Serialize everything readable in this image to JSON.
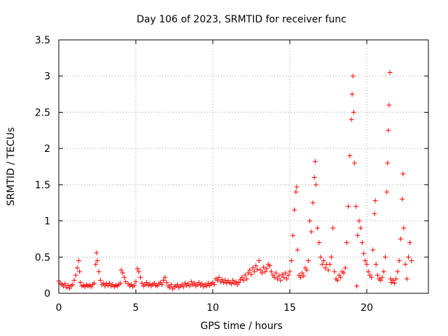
{
  "chart_data": {
    "type": "scatter",
    "title": "Day 106 of 2023, SRMTID for receiver func",
    "xlabel": "GPS time / hours",
    "ylabel": "SRMTID / TECUs",
    "xlim": [
      0,
      24
    ],
    "ylim": [
      0,
      3.5
    ],
    "xticks": [
      0,
      5,
      10,
      15,
      20
    ],
    "xtick_labels": [
      "0",
      "5",
      "10",
      "15",
      "20"
    ],
    "yticks": [
      0,
      0.5,
      1,
      1.5,
      2,
      2.5,
      3,
      3.5
    ],
    "ytick_labels": [
      "0",
      "0.5",
      "1",
      "1.5",
      "2",
      "2.5",
      "3",
      "3.5"
    ],
    "grid": true,
    "marker": "+",
    "color": "#ff0000",
    "series": [
      {
        "name": "SRMTID",
        "points": [
          [
            0.0,
            0.17
          ],
          [
            0.1,
            0.14
          ],
          [
            0.2,
            0.12
          ],
          [
            0.3,
            0.1
          ],
          [
            0.4,
            0.13
          ],
          [
            0.5,
            0.08
          ],
          [
            0.6,
            0.11
          ],
          [
            0.7,
            0.07
          ],
          [
            0.8,
            0.1
          ],
          [
            0.9,
            0.12
          ],
          [
            1.0,
            0.18
          ],
          [
            1.1,
            0.25
          ],
          [
            1.2,
            0.35
          ],
          [
            1.3,
            0.45
          ],
          [
            1.35,
            0.3
          ],
          [
            1.4,
            0.15
          ],
          [
            1.5,
            0.1
          ],
          [
            1.6,
            0.11
          ],
          [
            1.7,
            0.09
          ],
          [
            1.8,
            0.12
          ],
          [
            1.9,
            0.1
          ],
          [
            2.0,
            0.11
          ],
          [
            2.1,
            0.09
          ],
          [
            2.2,
            0.12
          ],
          [
            2.3,
            0.14
          ],
          [
            2.4,
            0.4
          ],
          [
            2.45,
            0.56
          ],
          [
            2.5,
            0.45
          ],
          [
            2.6,
            0.3
          ],
          [
            2.7,
            0.18
          ],
          [
            2.8,
            0.12
          ],
          [
            2.9,
            0.14
          ],
          [
            3.0,
            0.1
          ],
          [
            3.1,
            0.13
          ],
          [
            3.2,
            0.11
          ],
          [
            3.3,
            0.14
          ],
          [
            3.4,
            0.1
          ],
          [
            3.5,
            0.12
          ],
          [
            3.6,
            0.09
          ],
          [
            3.7,
            0.11
          ],
          [
            3.8,
            0.1
          ],
          [
            3.9,
            0.12
          ],
          [
            4.0,
            0.14
          ],
          [
            4.05,
            0.32
          ],
          [
            4.15,
            0.28
          ],
          [
            4.25,
            0.22
          ],
          [
            4.35,
            0.16
          ],
          [
            4.5,
            0.13
          ],
          [
            4.6,
            0.1
          ],
          [
            4.7,
            0.12
          ],
          [
            4.8,
            0.09
          ],
          [
            4.9,
            0.11
          ],
          [
            5.0,
            0.16
          ],
          [
            5.1,
            0.34
          ],
          [
            5.2,
            0.3
          ],
          [
            5.3,
            0.22
          ],
          [
            5.4,
            0.14
          ],
          [
            5.5,
            0.1
          ],
          [
            5.6,
            0.12
          ],
          [
            5.7,
            0.15
          ],
          [
            5.8,
            0.11
          ],
          [
            5.9,
            0.13
          ],
          [
            6.0,
            0.1
          ],
          [
            6.1,
            0.12
          ],
          [
            6.2,
            0.14
          ],
          [
            6.3,
            0.11
          ],
          [
            6.4,
            0.1
          ],
          [
            6.5,
            0.13
          ],
          [
            6.6,
            0.15
          ],
          [
            6.7,
            0.12
          ],
          [
            6.8,
            0.18
          ],
          [
            6.9,
            0.22
          ],
          [
            7.0,
            0.15
          ],
          [
            7.1,
            0.1
          ],
          [
            7.2,
            0.08
          ],
          [
            7.3,
            0.12
          ],
          [
            7.4,
            0.06
          ],
          [
            7.5,
            0.09
          ],
          [
            7.6,
            0.1
          ],
          [
            7.7,
            0.12
          ],
          [
            7.8,
            0.08
          ],
          [
            7.9,
            0.1
          ],
          [
            8.0,
            0.12
          ],
          [
            8.1,
            0.09
          ],
          [
            8.2,
            0.14
          ],
          [
            8.3,
            0.11
          ],
          [
            8.4,
            0.13
          ],
          [
            8.5,
            0.1
          ],
          [
            8.6,
            0.16
          ],
          [
            8.7,
            0.12
          ],
          [
            8.8,
            0.14
          ],
          [
            8.9,
            0.1
          ],
          [
            9.0,
            0.12
          ],
          [
            9.1,
            0.15
          ],
          [
            9.2,
            0.11
          ],
          [
            9.3,
            0.13
          ],
          [
            9.4,
            0.09
          ],
          [
            9.5,
            0.12
          ],
          [
            9.6,
            0.1
          ],
          [
            9.7,
            0.14
          ],
          [
            9.8,
            0.11
          ],
          [
            9.9,
            0.13
          ],
          [
            10.0,
            0.15
          ],
          [
            10.1,
            0.12
          ],
          [
            10.2,
            0.2
          ],
          [
            10.3,
            0.18
          ],
          [
            10.4,
            0.22
          ],
          [
            10.5,
            0.16
          ],
          [
            10.6,
            0.19
          ],
          [
            10.7,
            0.15
          ],
          [
            10.8,
            0.18
          ],
          [
            10.9,
            0.14
          ],
          [
            11.0,
            0.17
          ],
          [
            11.1,
            0.15
          ],
          [
            11.2,
            0.13
          ],
          [
            11.3,
            0.18
          ],
          [
            11.4,
            0.14
          ],
          [
            11.5,
            0.16
          ],
          [
            11.6,
            0.12
          ],
          [
            11.7,
            0.15
          ],
          [
            11.8,
            0.19
          ],
          [
            11.9,
            0.22
          ],
          [
            12.0,
            0.18
          ],
          [
            12.1,
            0.25
          ],
          [
            12.2,
            0.2
          ],
          [
            12.3,
            0.28
          ],
          [
            12.4,
            0.32
          ],
          [
            12.5,
            0.26
          ],
          [
            12.6,
            0.35
          ],
          [
            12.7,
            0.3
          ],
          [
            12.8,
            0.38
          ],
          [
            12.9,
            0.33
          ],
          [
            13.0,
            0.45
          ],
          [
            13.1,
            0.32
          ],
          [
            13.2,
            0.28
          ],
          [
            13.3,
            0.36
          ],
          [
            13.4,
            0.3
          ],
          [
            13.5,
            0.34
          ],
          [
            13.6,
            0.4
          ],
          [
            13.7,
            0.38
          ],
          [
            13.8,
            0.3
          ],
          [
            13.9,
            0.25
          ],
          [
            14.0,
            0.22
          ],
          [
            14.1,
            0.28
          ],
          [
            14.2,
            0.2
          ],
          [
            14.3,
            0.24
          ],
          [
            14.4,
            0.18
          ],
          [
            14.5,
            0.26
          ],
          [
            14.6,
            0.22
          ],
          [
            14.7,
            0.28
          ],
          [
            14.8,
            0.2
          ],
          [
            14.9,
            0.25
          ],
          [
            15.0,
            0.3
          ],
          [
            15.1,
            0.45
          ],
          [
            15.2,
            0.8
          ],
          [
            15.3,
            1.15
          ],
          [
            15.4,
            1.4
          ],
          [
            15.45,
            1.47
          ],
          [
            15.5,
            0.6
          ],
          [
            15.6,
            0.25
          ],
          [
            15.7,
            0.22
          ],
          [
            15.8,
            0.28
          ],
          [
            15.9,
            0.24
          ],
          [
            16.0,
            0.35
          ],
          [
            16.1,
            0.32
          ],
          [
            16.2,
            0.45
          ],
          [
            16.3,
            1.0
          ],
          [
            16.4,
            0.85
          ],
          [
            16.5,
            1.25
          ],
          [
            16.6,
            1.6
          ],
          [
            16.65,
            1.82
          ],
          [
            16.7,
            1.5
          ],
          [
            16.8,
            0.9
          ],
          [
            16.9,
            0.7
          ],
          [
            17.0,
            0.5
          ],
          [
            17.1,
            0.4
          ],
          [
            17.2,
            0.45
          ],
          [
            17.3,
            0.35
          ],
          [
            17.4,
            0.4
          ],
          [
            17.5,
            0.32
          ],
          [
            17.6,
            0.4
          ],
          [
            17.7,
            0.5
          ],
          [
            17.8,
            0.9
          ],
          [
            17.9,
            0.3
          ],
          [
            18.0,
            0.2
          ],
          [
            18.1,
            0.18
          ],
          [
            18.2,
            0.25
          ],
          [
            18.3,
            0.22
          ],
          [
            18.4,
            0.3
          ],
          [
            18.5,
            0.28
          ],
          [
            18.6,
            0.35
          ],
          [
            18.7,
            0.7
          ],
          [
            18.8,
            1.2
          ],
          [
            18.9,
            1.9
          ],
          [
            19.0,
            2.4
          ],
          [
            19.05,
            2.75
          ],
          [
            19.1,
            3.0
          ],
          [
            19.15,
            2.5
          ],
          [
            19.2,
            1.8
          ],
          [
            19.3,
            1.2
          ],
          [
            19.35,
            0.1
          ],
          [
            19.4,
            0.8
          ],
          [
            19.5,
            1.0
          ],
          [
            19.6,
            0.9
          ],
          [
            19.7,
            0.7
          ],
          [
            19.8,
            0.55
          ],
          [
            19.9,
            0.45
          ],
          [
            20.0,
            0.4
          ],
          [
            20.1,
            0.3
          ],
          [
            20.2,
            0.25
          ],
          [
            20.3,
            0.22
          ],
          [
            20.4,
            0.6
          ],
          [
            20.5,
            1.1
          ],
          [
            20.55,
            1.28
          ],
          [
            20.6,
            0.4
          ],
          [
            20.7,
            0.25
          ],
          [
            20.8,
            0.2
          ],
          [
            20.9,
            0.18
          ],
          [
            21.0,
            0.22
          ],
          [
            21.1,
            0.3
          ],
          [
            21.2,
            0.5
          ],
          [
            21.3,
            1.4
          ],
          [
            21.35,
            1.8
          ],
          [
            21.4,
            2.25
          ],
          [
            21.45,
            2.6
          ],
          [
            21.5,
            3.05
          ],
          [
            21.55,
            0.2
          ],
          [
            21.6,
            0.15
          ],
          [
            21.7,
            0.18
          ],
          [
            21.8,
            0.14
          ],
          [
            21.9,
            0.2
          ],
          [
            22.0,
            0.3
          ],
          [
            22.1,
            0.45
          ],
          [
            22.2,
            0.75
          ],
          [
            22.3,
            1.3
          ],
          [
            22.35,
            1.65
          ],
          [
            22.4,
            0.9
          ],
          [
            22.5,
            0.4
          ],
          [
            22.6,
            0.2
          ],
          [
            22.7,
            0.5
          ],
          [
            22.8,
            0.7
          ],
          [
            22.9,
            0.45
          ]
        ]
      }
    ]
  }
}
